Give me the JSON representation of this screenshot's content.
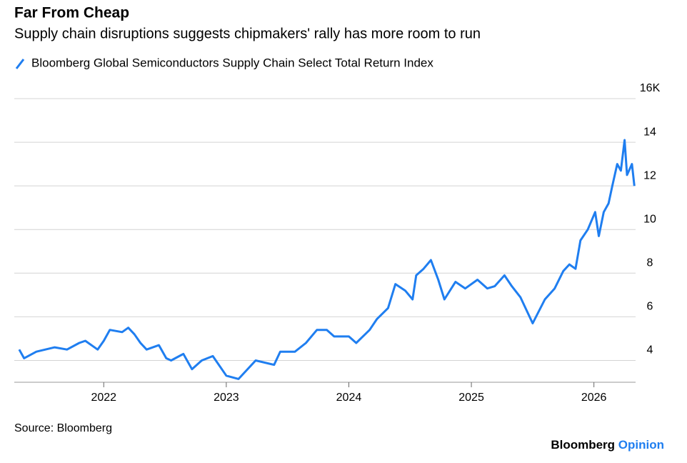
{
  "chart_data": {
    "type": "line",
    "title": "Far From Cheap",
    "subtitle": "Supply chain disruptions suggests chipmakers' rally has more room to run",
    "source": "Source: Bloomberg",
    "brand": "Bloomberg",
    "brand_suffix": "Opinion",
    "x": [
      2021.31,
      2021.35,
      2021.45,
      2021.6,
      2021.7,
      2021.8,
      2021.85,
      2021.95,
      2022.0,
      2022.05,
      2022.15,
      2022.2,
      2022.25,
      2022.3,
      2022.35,
      2022.45,
      2022.51,
      2022.55,
      2022.65,
      2022.72,
      2022.8,
      2022.89,
      2023.0,
      2023.1,
      2023.24,
      2023.39,
      2023.44,
      2023.56,
      2023.65,
      2023.74,
      2023.82,
      2023.88,
      2024.0,
      2024.06,
      2024.17,
      2024.23,
      2024.32,
      2024.38,
      2024.46,
      2024.52,
      2024.55,
      2024.61,
      2024.67,
      2024.73,
      2024.78,
      2024.87,
      2024.95,
      2025.05,
      2025.13,
      2025.19,
      2025.27,
      2025.33,
      2025.4,
      2025.5,
      2025.6,
      2025.68,
      2025.75,
      2025.8,
      2025.85,
      2025.89,
      2025.95,
      2026.01,
      2026.04,
      2026.08,
      2026.12,
      2026.15,
      2026.19,
      2026.22,
      2026.25,
      2026.27,
      2026.31,
      2026.33
    ],
    "series": [
      {
        "name": "Bloomberg Global Semiconductors Supply Chain Select Total Return Index",
        "color": "#1f7ef0",
        "values": [
          4.5,
          4.1,
          4.4,
          4.6,
          4.5,
          4.8,
          4.9,
          4.5,
          4.9,
          5.4,
          5.3,
          5.5,
          5.2,
          4.8,
          4.5,
          4.7,
          4.1,
          4.0,
          4.3,
          3.6,
          4.0,
          4.2,
          3.3,
          3.15,
          4.0,
          3.8,
          4.4,
          4.4,
          4.8,
          5.4,
          5.4,
          5.1,
          5.1,
          4.8,
          5.4,
          5.9,
          6.4,
          7.5,
          7.2,
          6.8,
          7.9,
          8.2,
          8.6,
          7.7,
          6.8,
          7.6,
          7.3,
          7.7,
          7.3,
          7.4,
          7.9,
          7.4,
          6.9,
          5.7,
          6.8,
          7.3,
          8.1,
          8.4,
          8.2,
          9.5,
          10.0,
          10.8,
          9.7,
          10.8,
          11.2,
          12.0,
          13.0,
          12.7,
          14.1,
          12.5,
          13.0,
          12.0
        ]
      }
    ],
    "xlim": [
      2021.27,
      2026.34
    ],
    "xticks": [
      2022,
      2023,
      2024,
      2025,
      2026
    ],
    "ylim": [
      3,
      16
    ],
    "yticks": [
      4,
      6,
      8,
      10,
      12,
      14,
      {
        "value": 16,
        "label": "16K"
      }
    ],
    "grid": true
  }
}
